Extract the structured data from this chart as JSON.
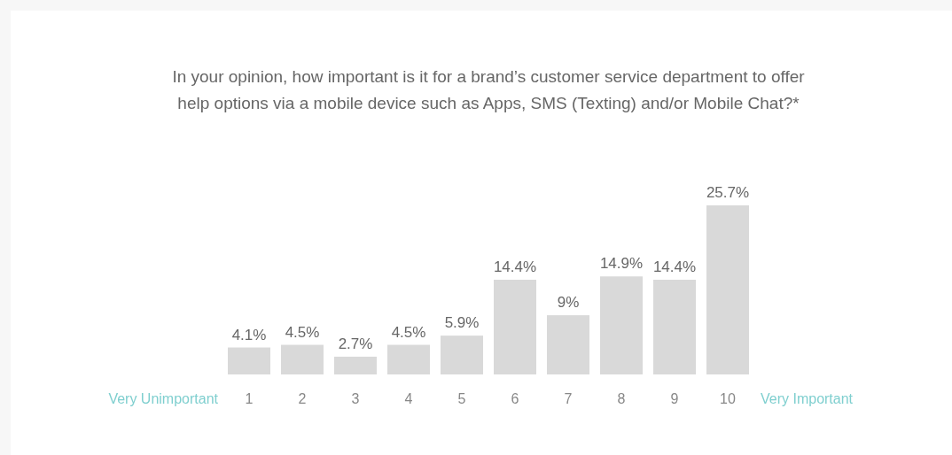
{
  "chart_data": {
    "type": "bar",
    "title": "In your opinion, how important is it for a brand’s customer service department to offer help options via a mobile device such as Apps, SMS (Texting) and/or Mobile Chat?*",
    "categories": [
      "1",
      "2",
      "3",
      "4",
      "5",
      "6",
      "7",
      "8",
      "9",
      "10"
    ],
    "values": [
      4.1,
      4.5,
      2.7,
      4.5,
      5.9,
      14.4,
      9,
      14.9,
      14.4,
      25.7
    ],
    "value_labels": [
      "4.1%",
      "4.5%",
      "2.7%",
      "4.5%",
      "5.9%",
      "14.4%",
      "9%",
      "14.9%",
      "14.4%",
      "25.7%"
    ],
    "color": "#d9d9d9",
    "annotations": [
      "Very Unimportant",
      "Very Important"
    ]
  }
}
